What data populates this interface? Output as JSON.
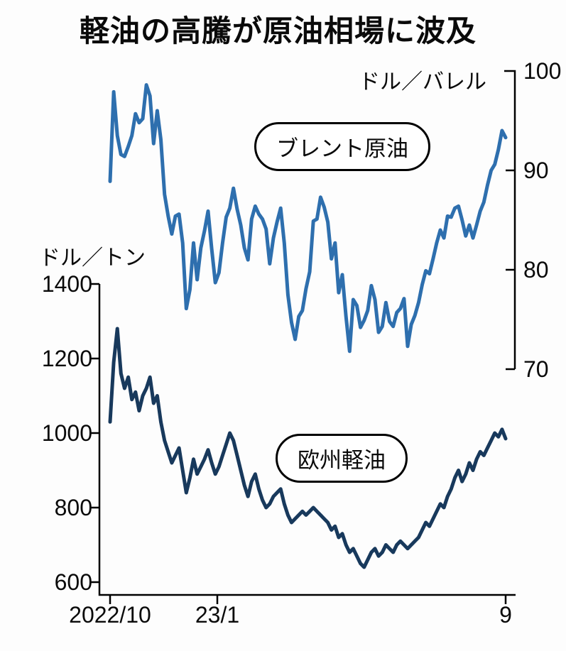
{
  "chart_data": {
    "type": "line",
    "title": "軽油の高騰が原油相場に波及",
    "x_axis": {
      "ticks": [
        "2022/10",
        "23/1",
        "9"
      ],
      "range_note": "2022年10月〜2023年9月"
    },
    "series": [
      {
        "name": "ブレント原油",
        "unit": "ドル／バレル",
        "axis": "right",
        "color": "#2e6fae",
        "ylim": [
          70,
          100
        ],
        "yticks": [
          70,
          80,
          90,
          100
        ],
        "values": [
          88.9,
          97.9,
          93.5,
          91.6,
          91.4,
          92.4,
          93.5,
          95.7,
          94.8,
          95.2,
          98.6,
          97.5,
          92.7,
          96.0,
          93.1,
          87.6,
          85.4,
          83.6,
          85.4,
          85.6,
          82.7,
          76.1,
          78.0,
          82.7,
          79.0,
          82.2,
          83.9,
          85.9,
          82.1,
          78.7,
          79.7,
          82.7,
          85.3,
          86.2,
          88.2,
          86.1,
          84.5,
          82.2,
          81.0,
          85.1,
          86.4,
          85.6,
          85.1,
          84.1,
          80.6,
          83.2,
          84.8,
          86.2,
          82.7,
          77.5,
          74.7,
          73.0,
          75.3,
          75.9,
          78.1,
          79.8,
          84.9,
          85.1,
          87.3,
          86.3,
          84.8,
          81.1,
          82.7,
          77.7,
          79.5,
          75.3,
          71.8,
          77.0,
          76.4,
          74.2,
          74.9,
          75.9,
          78.4,
          77.0,
          73.7,
          74.3,
          76.7,
          74.8,
          74.3,
          75.7,
          76.1,
          77.1,
          72.3,
          74.5,
          75.4,
          76.7,
          78.5,
          79.9,
          79.6,
          81.1,
          82.7,
          84.0,
          83.2,
          85.4,
          85.3,
          86.2,
          86.4,
          85.0,
          83.4,
          84.5,
          83.2,
          84.5,
          85.9,
          86.8,
          88.5,
          90.0,
          90.6,
          92.1,
          94.0,
          93.3
        ]
      },
      {
        "name": "欧州軽油",
        "unit": "ドル／トン",
        "axis": "left",
        "color": "#18395c",
        "ylim": [
          600,
          1400
        ],
        "yticks": [
          600,
          800,
          1000,
          1200,
          1400
        ],
        "values": [
          1030,
          1190,
          1280,
          1160,
          1120,
          1150,
          1090,
          1110,
          1060,
          1100,
          1120,
          1150,
          1080,
          1100,
          1030,
          980,
          950,
          920,
          940,
          960,
          900,
          840,
          880,
          930,
          890,
          910,
          930,
          955,
          920,
          890,
          910,
          940,
          970,
          1000,
          980,
          940,
          900,
          860,
          830,
          870,
          890,
          850,
          820,
          800,
          810,
          830,
          840,
          850,
          810,
          780,
          760,
          770,
          780,
          790,
          780,
          790,
          800,
          790,
          780,
          770,
          760,
          740,
          750,
          720,
          730,
          700,
          680,
          690,
          670,
          650,
          640,
          660,
          680,
          690,
          670,
          680,
          700,
          690,
          680,
          700,
          710,
          700,
          690,
          700,
          710,
          720,
          740,
          760,
          750,
          770,
          790,
          810,
          800,
          830,
          850,
          880,
          900,
          870,
          890,
          920,
          900,
          930,
          950,
          940,
          960,
          980,
          1000,
          990,
          1010,
          985
        ]
      }
    ]
  }
}
